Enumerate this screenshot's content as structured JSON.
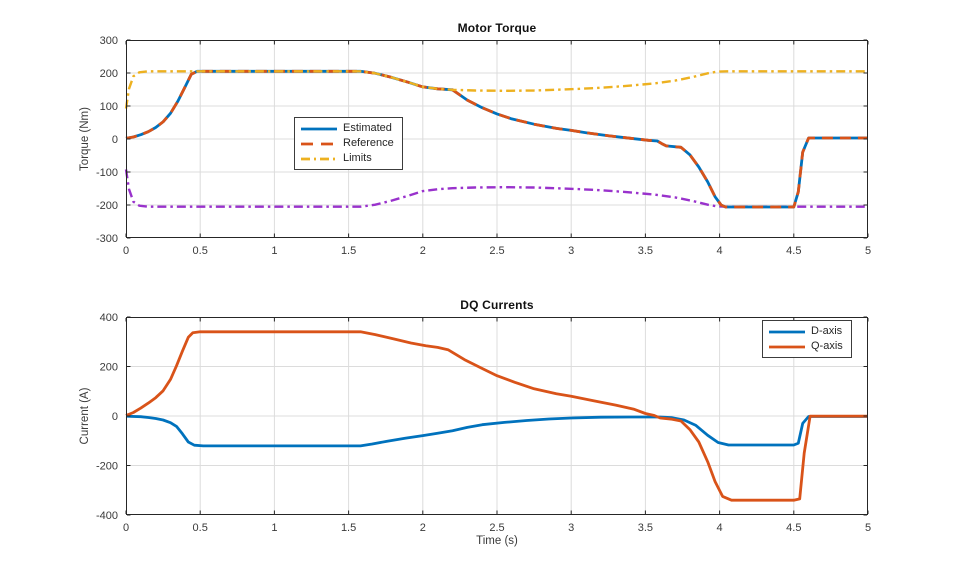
{
  "figure": {
    "background": "#ffffff",
    "axis_color": "#262626",
    "grid_color": "#dcdcdc",
    "tick_label_color": "#3a3a3a",
    "colors": {
      "blue": "#0072BD",
      "orange": "#D95319",
      "yellow": "#EDB120",
      "purple": "#9932CC"
    }
  },
  "chart_data": [
    {
      "type": "line",
      "title": "Motor Torque",
      "xlabel": "",
      "ylabel": "Torque (Nm)",
      "xlim": [
        0,
        5
      ],
      "ylim": [
        -300,
        300
      ],
      "grid": true,
      "xticks": [
        0,
        0.5,
        1,
        1.5,
        2,
        2.5,
        3,
        3.5,
        4,
        4.5,
        5
      ],
      "xtick_labels": [
        "0",
        "0.5",
        "1",
        "1.5",
        "2",
        "2.5",
        "3",
        "3.5",
        "4",
        "4.5",
        "5"
      ],
      "yticks": [
        300,
        200,
        100,
        0,
        -100,
        -200,
        -300
      ],
      "ytick_labels": [
        "300",
        "200",
        "100",
        "0",
        "-100",
        "-200",
        "-300"
      ],
      "legend": {
        "position": "inside-center-left",
        "entries": [
          {
            "label": "Estimated",
            "color": "#0072BD",
            "style": "solid"
          },
          {
            "label": "Reference",
            "color": "#D95319",
            "style": "dashed"
          },
          {
            "label": "Limits",
            "color": "#EDB120",
            "style": "dashdot"
          }
        ]
      },
      "series": [
        {
          "name": "Limits lower",
          "color": "#9932CC",
          "style": "dashdot",
          "width": 2.4,
          "x": [
            0,
            0.02,
            0.05,
            0.09,
            0.15,
            1.58,
            1.68,
            1.78,
            1.9,
            2.0,
            2.1,
            2.2,
            2.35,
            2.55,
            2.75,
            2.95,
            3.15,
            3.35,
            3.55,
            3.7,
            3.82,
            3.92,
            3.98,
            4.05,
            5
          ],
          "y": [
            -92,
            -152,
            -190,
            -202,
            -205,
            -205,
            -199,
            -188,
            -172,
            -158,
            -152,
            -149,
            -147,
            -146,
            -147,
            -150,
            -154,
            -160,
            -168,
            -177,
            -188,
            -199,
            -204,
            -205,
            -205
          ]
        },
        {
          "name": "Estimated",
          "color": "#0072BD",
          "style": "solid",
          "width": 2.8,
          "x": [
            0,
            0.05,
            0.1,
            0.15,
            0.2,
            0.25,
            0.3,
            0.35,
            0.4,
            0.44,
            0.48,
            1.58,
            1.68,
            1.78,
            1.9,
            2.0,
            2.1,
            2.2,
            2.3,
            2.4,
            2.5,
            2.6,
            2.75,
            2.9,
            3.0,
            3.1,
            3.25,
            3.4,
            3.52,
            3.58,
            3.61,
            3.64,
            3.74,
            3.8,
            3.86,
            3.92,
            3.97,
            4.01,
            4.04,
            4.5,
            4.53,
            4.56,
            4.6,
            5
          ],
          "y": [
            2,
            6,
            13,
            22,
            35,
            52,
            78,
            115,
            160,
            196,
            205,
            205,
            199,
            188,
            172,
            158,
            152,
            149,
            118,
            95,
            76,
            61,
            45,
            32,
            26,
            19,
            10,
            2,
            -4,
            -6,
            -14,
            -21,
            -25,
            -48,
            -85,
            -130,
            -175,
            -200,
            -206,
            -206,
            -160,
            -40,
            3,
            3
          ]
        },
        {
          "name": "Reference",
          "color": "#D95319",
          "style": "dashed",
          "width": 2.8,
          "x": [
            0,
            0.05,
            0.1,
            0.15,
            0.2,
            0.25,
            0.3,
            0.35,
            0.4,
            0.44,
            0.48,
            1.58,
            1.68,
            1.78,
            1.9,
            2.0,
            2.1,
            2.2,
            2.3,
            2.4,
            2.5,
            2.6,
            2.75,
            2.9,
            3.0,
            3.1,
            3.25,
            3.4,
            3.52,
            3.58,
            3.61,
            3.64,
            3.74,
            3.8,
            3.86,
            3.92,
            3.97,
            4.01,
            4.04,
            4.5,
            4.53,
            4.56,
            4.6,
            5
          ],
          "y": [
            2,
            6,
            13,
            22,
            35,
            52,
            78,
            115,
            160,
            196,
            205,
            205,
            199,
            188,
            172,
            158,
            152,
            149,
            118,
            95,
            76,
            61,
            45,
            32,
            26,
            19,
            10,
            2,
            -4,
            -6,
            -14,
            -21,
            -25,
            -48,
            -85,
            -130,
            -175,
            -200,
            -206,
            -206,
            -160,
            -40,
            3,
            3
          ]
        },
        {
          "name": "Limits upper",
          "color": "#EDB120",
          "style": "dashdot",
          "width": 2.4,
          "x": [
            0,
            0.02,
            0.05,
            0.09,
            0.15,
            1.58,
            1.68,
            1.78,
            1.9,
            2.0,
            2.1,
            2.2,
            2.35,
            2.55,
            2.75,
            2.95,
            3.15,
            3.35,
            3.55,
            3.7,
            3.82,
            3.92,
            3.98,
            4.05,
            5
          ],
          "y": [
            92,
            152,
            190,
            202,
            205,
            205,
            199,
            188,
            172,
            158,
            152,
            149,
            147,
            146,
            147,
            150,
            154,
            160,
            168,
            177,
            188,
            199,
            204,
            205,
            205
          ]
        }
      ]
    },
    {
      "type": "line",
      "title": "DQ Currents",
      "xlabel": "Time (s)",
      "ylabel": "Current (A)",
      "xlim": [
        0,
        5
      ],
      "ylim": [
        -400,
        400
      ],
      "grid": true,
      "xticks": [
        0,
        0.5,
        1,
        1.5,
        2,
        2.5,
        3,
        3.5,
        4,
        4.5,
        5
      ],
      "xtick_labels": [
        "0",
        "0.5",
        "1",
        "1.5",
        "2",
        "2.5",
        "3",
        "3.5",
        "4",
        "4.5",
        "5"
      ],
      "yticks": [
        400,
        200,
        0,
        -200,
        -400
      ],
      "ytick_labels": [
        "400",
        "200",
        "0",
        "-200",
        "-400"
      ],
      "legend": {
        "position": "inside-top-right",
        "entries": [
          {
            "label": "D-axis",
            "color": "#0072BD",
            "style": "solid"
          },
          {
            "label": "Q-axis",
            "color": "#D95319",
            "style": "solid"
          }
        ]
      },
      "series": [
        {
          "name": "D-axis",
          "color": "#0072BD",
          "style": "solid",
          "width": 2.8,
          "x": [
            0,
            0.1,
            0.15,
            0.2,
            0.25,
            0.3,
            0.34,
            0.38,
            0.42,
            0.46,
            0.52,
            1.58,
            1.66,
            1.76,
            1.88,
            2.0,
            2.1,
            2.2,
            2.3,
            2.4,
            2.55,
            2.7,
            2.85,
            3.0,
            3.2,
            3.4,
            3.6,
            3.68,
            3.76,
            3.84,
            3.92,
            3.99,
            4.06,
            4.5,
            4.53,
            4.56,
            4.6,
            5
          ],
          "y": [
            -1,
            -3,
            -6,
            -10,
            -16,
            -27,
            -42,
            -72,
            -105,
            -118,
            -121,
            -121,
            -113,
            -102,
            -90,
            -79,
            -70,
            -60,
            -46,
            -35,
            -26,
            -18,
            -12,
            -8,
            -5,
            -4,
            -4,
            -7,
            -16,
            -38,
            -78,
            -107,
            -117,
            -117,
            -110,
            -30,
            -2,
            -2
          ]
        },
        {
          "name": "Q-axis",
          "color": "#D95319",
          "style": "solid",
          "width": 2.8,
          "x": [
            0,
            0.05,
            0.1,
            0.15,
            0.2,
            0.25,
            0.3,
            0.34,
            0.38,
            0.42,
            0.45,
            0.5,
            1.58,
            1.68,
            1.8,
            1.92,
            2.02,
            2.1,
            2.17,
            2.28,
            2.4,
            2.5,
            2.62,
            2.75,
            2.9,
            3.0,
            3.15,
            3.3,
            3.42,
            3.5,
            3.56,
            3.6,
            3.68,
            3.74,
            3.8,
            3.86,
            3.92,
            3.97,
            4.02,
            4.08,
            4.5,
            4.54,
            4.57,
            4.61,
            5
          ],
          "y": [
            2,
            14,
            32,
            52,
            74,
            102,
            148,
            203,
            262,
            318,
            336,
            340,
            340,
            329,
            312,
            295,
            284,
            277,
            268,
            228,
            192,
            163,
            136,
            110,
            90,
            80,
            62,
            44,
            28,
            10,
            2,
            -8,
            -13,
            -20,
            -55,
            -105,
            -185,
            -265,
            -325,
            -340,
            -340,
            -335,
            -150,
            -1,
            -1
          ]
        }
      ]
    }
  ]
}
